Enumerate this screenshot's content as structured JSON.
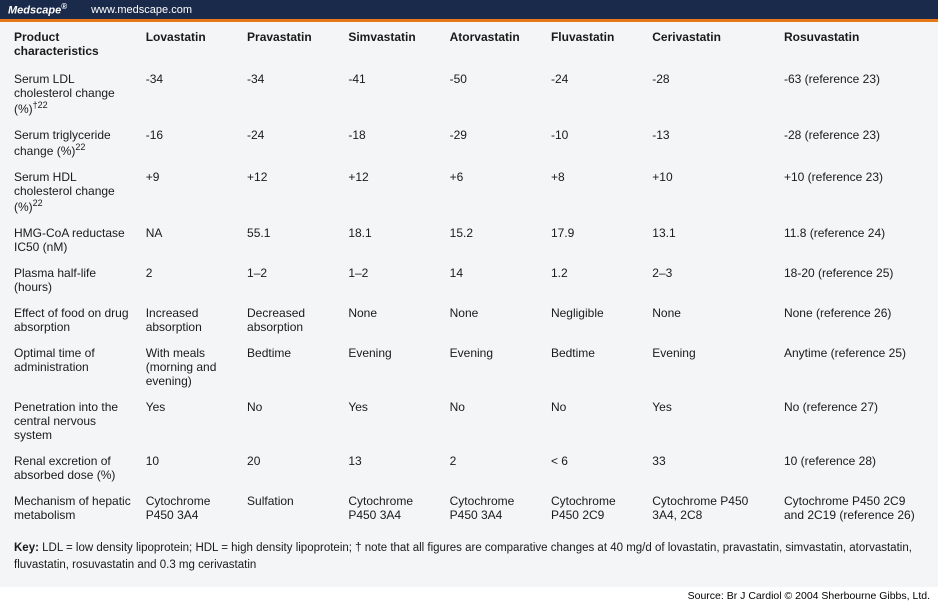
{
  "header": {
    "brand": "Medscape",
    "reg": "®",
    "url": "www.medscape.com"
  },
  "colors": {
    "header_bg": "#1a2a4a",
    "orange_rule": "#e67817",
    "table_bg": "#f4f5f6"
  },
  "table": {
    "columns": [
      "Product characteristics",
      "Lovastatin",
      "Pravastatin",
      "Simvastatin",
      "Atorvastatin",
      "Fluvastatin",
      "Cerivastatin",
      "Rosuvastatin"
    ],
    "rows": [
      {
        "label": "Serum LDL cholesterol change (%)",
        "sup": "†22",
        "cells": [
          "-34",
          "-34",
          "-41",
          "-50",
          "-24",
          "-28",
          " -63 (reference 23)"
        ]
      },
      {
        "label": "Serum triglyceride change (%)",
        "sup": "22",
        "cells": [
          "-16",
          "-24",
          "-18",
          "-29",
          "-10",
          "-13",
          " -28 (reference 23)"
        ]
      },
      {
        "label": "Serum HDL cholesterol change (%)",
        "sup": "22",
        "cells": [
          "+9",
          "+12",
          "+12",
          "+6",
          "+8",
          "+10",
          "+10 (reference 23)"
        ]
      },
      {
        "label": "HMG-CoA reductase IC50 (nM)",
        "sup": "",
        "cells": [
          "NA",
          "55.1",
          "18.1",
          "15.2",
          "17.9",
          "13.1",
          "11.8 (reference 24)"
        ]
      },
      {
        "label": "Plasma half-life (hours)",
        "sup": "",
        "cells": [
          "2",
          "1–2",
          "1–2",
          "14",
          "1.2",
          "2–3",
          "18-20 (reference 25)"
        ]
      },
      {
        "label": "Effect of food on drug absorption",
        "sup": "",
        "cells": [
          "Increased absorption",
          "Decreased absorption",
          "None",
          "None",
          "Negligible",
          "None",
          "None (reference 26)"
        ]
      },
      {
        "label": "Optimal time of administration",
        "sup": "",
        "cells": [
          "With meals (morning and evening)",
          "Bedtime",
          "Evening",
          "Evening",
          "Bedtime",
          "Evening",
          "Anytime (reference 25)"
        ]
      },
      {
        "label": "Penetration into the central nervous system",
        "sup": "",
        "cells": [
          "Yes",
          "No",
          "Yes",
          "No",
          "No",
          "Yes",
          "No (reference 27)"
        ]
      },
      {
        "label": "Renal excretion of absorbed dose (%)",
        "sup": "",
        "cells": [
          "10",
          "20",
          "13",
          "2",
          "< 6",
          "33",
          "10 (reference 28)"
        ]
      },
      {
        "label": "Mechanism of hepatic metabolism",
        "sup": "",
        "cells": [
          "Cytochrome P450 3A4",
          "Sulfation",
          "Cytochrome P450 3A4",
          "Cytochrome P450 3A4",
          "Cytochrome P450 2C9",
          "Cytochrome P450 3A4, 2C8",
          "Cytochrome P450 2C9 and 2C19 (reference 26)"
        ]
      }
    ],
    "key_label": "Key:",
    "key_text": " LDL = low density lipoprotein; HDL = high density lipoprotein; † note that all figures are comparative changes at 40 mg/d of lovastatin, pravastatin, simvastatin, atorvastatin, fluvastatin, rosuvastatin and 0.3 mg cerivastatin"
  },
  "footer": {
    "text": "Source: Br J Cardiol © 2004 Sherbourne Gibbs, Ltd."
  }
}
